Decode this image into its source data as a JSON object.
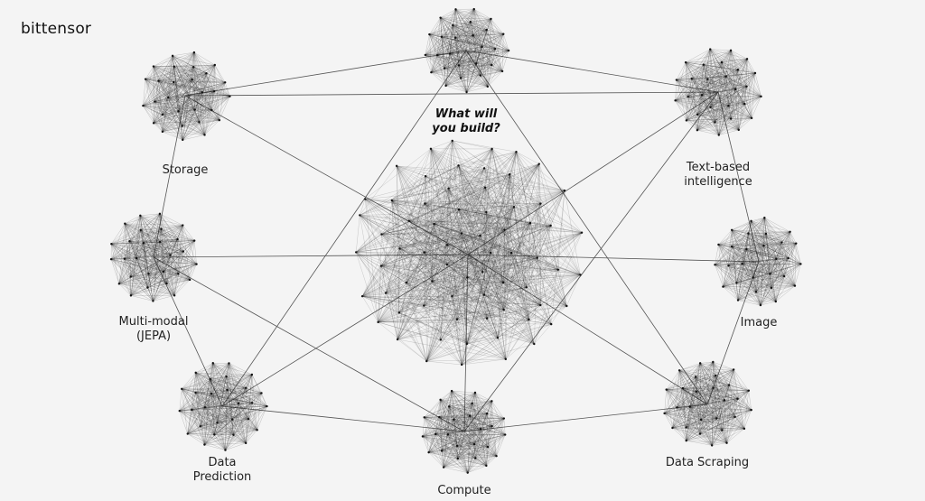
{
  "brand": {
    "logo": "bittensor"
  },
  "nodes": [
    {
      "id": "build",
      "label_lines": [
        "What will",
        "you build?"
      ],
      "hero": true
    },
    {
      "id": "storage",
      "label_lines": [
        "Storage"
      ]
    },
    {
      "id": "text",
      "label_lines": [
        "Text-based",
        "intelligence"
      ]
    },
    {
      "id": "multimodal",
      "label_lines": [
        "Multi-modal",
        "(JEPA)"
      ]
    },
    {
      "id": "image",
      "label_lines": [
        "Image"
      ]
    },
    {
      "id": "prediction",
      "label_lines": [
        "Data",
        "Prediction"
      ]
    },
    {
      "id": "compute",
      "label_lines": [
        "Compute"
      ]
    },
    {
      "id": "scraping",
      "label_lines": [
        "Data Scraping"
      ]
    },
    {
      "id": "center",
      "label_lines": []
    }
  ],
  "edges": [
    [
      "build",
      "storage"
    ],
    [
      "build",
      "text"
    ],
    [
      "build",
      "prediction"
    ],
    [
      "build",
      "scraping"
    ],
    [
      "storage",
      "multimodal"
    ],
    [
      "storage",
      "center"
    ],
    [
      "storage",
      "text"
    ],
    [
      "text",
      "center"
    ],
    [
      "text",
      "image"
    ],
    [
      "text",
      "compute"
    ],
    [
      "multimodal",
      "center"
    ],
    [
      "multimodal",
      "prediction"
    ],
    [
      "multimodal",
      "compute"
    ],
    [
      "image",
      "center"
    ],
    [
      "image",
      "scraping"
    ],
    [
      "center",
      "prediction"
    ],
    [
      "center",
      "compute"
    ],
    [
      "center",
      "scraping"
    ],
    [
      "prediction",
      "compute"
    ],
    [
      "compute",
      "scraping"
    ]
  ],
  "colors": {
    "background": "#f4f4f4",
    "ink": "#1a1a1a"
  }
}
